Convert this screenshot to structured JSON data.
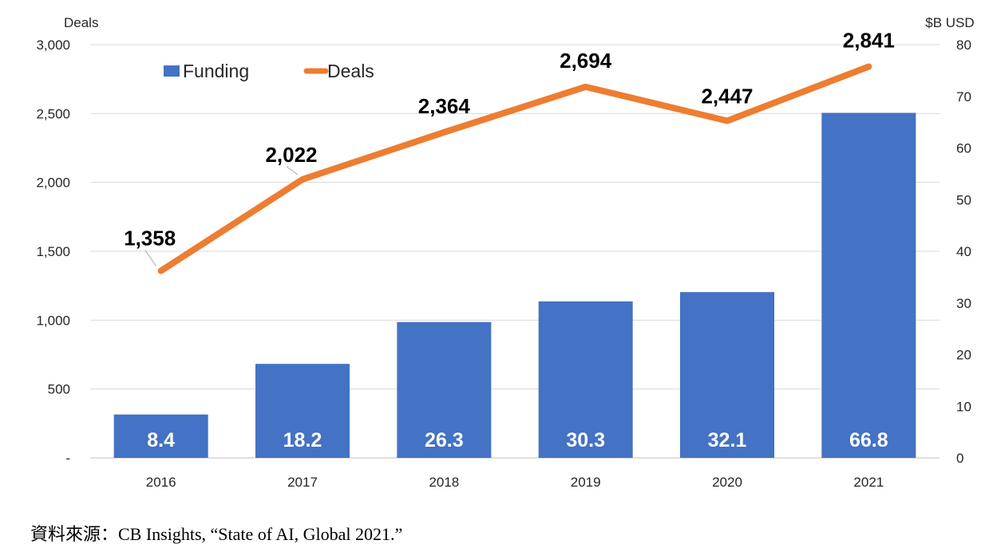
{
  "chart_data": {
    "type": "bar",
    "categories": [
      "2016",
      "2017",
      "2018",
      "2019",
      "2020",
      "2021"
    ],
    "series": [
      {
        "name": "Funding",
        "kind": "bar",
        "axis": "right",
        "values": [
          8.4,
          18.2,
          26.3,
          30.3,
          32.1,
          66.8
        ],
        "color": "#4472C4"
      },
      {
        "name": "Deals",
        "kind": "line",
        "axis": "left",
        "values": [
          1358,
          2022,
          2364,
          2694,
          2447,
          2841
        ],
        "color": "#ED7D31"
      }
    ],
    "data_labels": {
      "funding": [
        "8.4",
        "18.2",
        "26.3",
        "30.3",
        "32.1",
        "66.8"
      ],
      "deals": [
        "1,358",
        "2,022",
        "2,364",
        "2,694",
        "2,447",
        "2,841"
      ]
    },
    "left_axis": {
      "unit": "Deals",
      "ylim": [
        0,
        3000
      ],
      "ticks": [
        0,
        500,
        1000,
        1500,
        2000,
        2500,
        3000
      ],
      "tick_labels": [
        "-",
        "500",
        "1,000",
        "1,500",
        "2,000",
        "2,500",
        "3,000"
      ]
    },
    "right_axis": {
      "unit": "$B USD",
      "ylim": [
        0,
        80
      ],
      "ticks": [
        0,
        10,
        20,
        30,
        40,
        50,
        60,
        70,
        80
      ],
      "tick_labels": [
        "0",
        "10",
        "20",
        "30",
        "40",
        "50",
        "60",
        "70",
        "80"
      ]
    },
    "legend": {
      "placement": "top-left",
      "entries": [
        "Funding",
        "Deals"
      ]
    },
    "grid": true,
    "gridline_color": "#D9D9D9"
  },
  "source_note": "資料來源：CB Insights, “State of AI, Global 2021.”"
}
